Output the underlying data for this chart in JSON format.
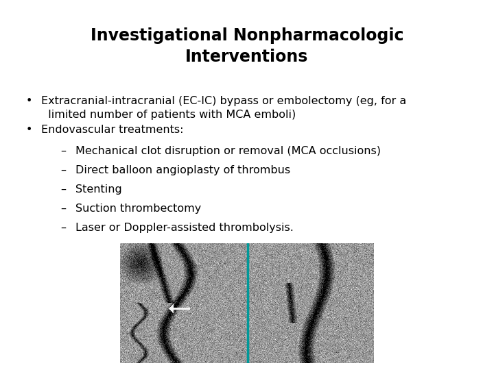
{
  "title_line1": "Investigational Nonpharmacologic",
  "title_line2": "Interventions",
  "title_fontsize": 17,
  "title_fontweight": "bold",
  "background_color": "#ffffff",
  "text_color": "#000000",
  "body_fontsize": 11.5,
  "sub_bullets": [
    "Mechanical clot disruption or removal (MCA occlusions)",
    "Direct balloon angioplasty of thrombus",
    "Stenting",
    "Suction thrombectomy",
    "Laser or Doppler-assisted thrombolysis."
  ],
  "teal_color": "#009999"
}
